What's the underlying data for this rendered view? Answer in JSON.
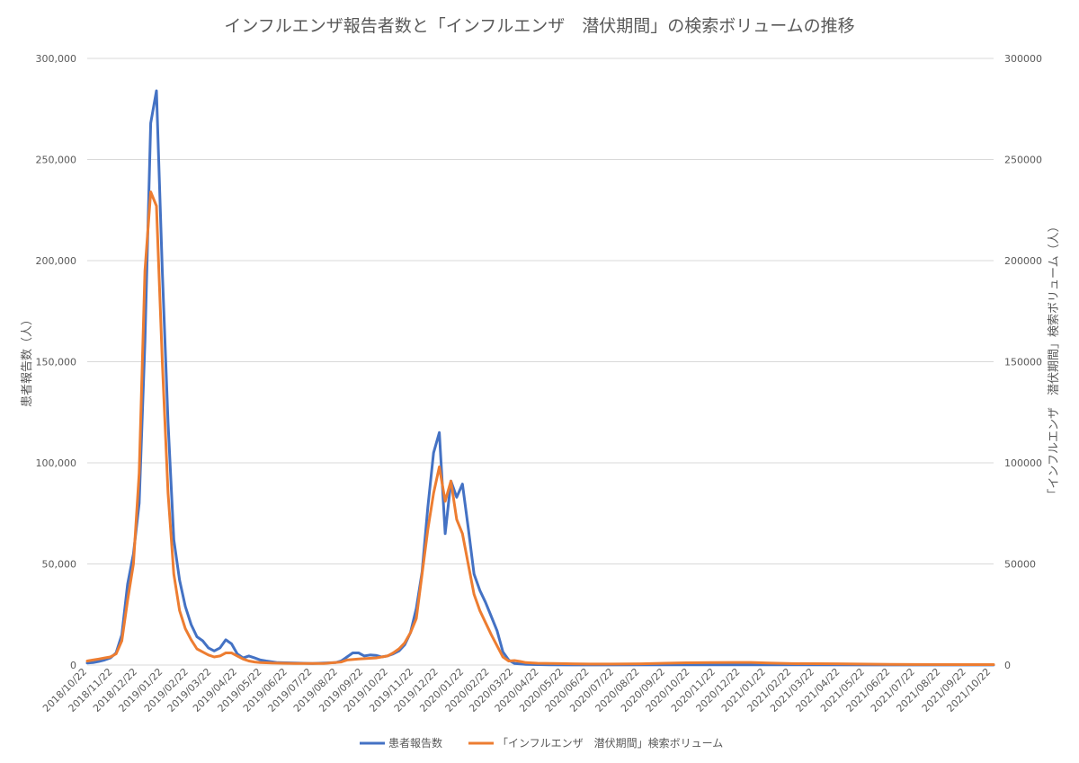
{
  "chart_data": {
    "type": "line",
    "title": "インフルエンザ報告者数と「インフルエンザ　潜伏期間」の検索ボリュームの推移",
    "y_left_label": "患者報告数（人）",
    "y_right_label": "「インフルエンザ　潜伏期間」検索ボリューム（人）",
    "y_left_ticks": [
      "0",
      "50,000",
      "100,000",
      "150,000",
      "200,000",
      "250,000",
      "300,000"
    ],
    "y_right_ticks": [
      "0",
      "50000",
      "100000",
      "150000",
      "200000",
      "250000",
      "300000"
    ],
    "ylim": [
      0,
      300000
    ],
    "grid": true,
    "legend_position": "bottom",
    "x_tick_labels": [
      "2018/10/22",
      "2018/11/22",
      "2018/12/22",
      "2019/01/22",
      "2019/02/22",
      "2019/03/22",
      "2019/04/22",
      "2019/05/22",
      "2019/06/22",
      "2019/07/22",
      "2019/08/22",
      "2019/09/22",
      "2019/10/22",
      "2019/11/22",
      "2019/12/22",
      "2020/01/22",
      "2020/02/22",
      "2020/03/22",
      "2020/04/22",
      "2020/05/22",
      "2020/06/22",
      "2020/07/22",
      "2020/08/22",
      "2020/09/22",
      "2020/10/22",
      "2020/11/22",
      "2020/12/22",
      "2021/01/22",
      "2021/02/22",
      "2021/03/22",
      "2021/04/22",
      "2021/05/22",
      "2021/06/22",
      "2021/07/22",
      "2021/08/22",
      "2021/09/22",
      "2021/10/22"
    ],
    "x_start": "2018-10-22",
    "series": [
      {
        "name": "患者報告数",
        "color": "#4472C4",
        "axis": "left",
        "points": [
          [
            "2018-10-22",
            1000
          ],
          [
            "2018-10-29",
            1200
          ],
          [
            "2018-11-05",
            1800
          ],
          [
            "2018-11-12",
            2500
          ],
          [
            "2018-11-19",
            3500
          ],
          [
            "2018-11-26",
            6000
          ],
          [
            "2018-12-03",
            15000
          ],
          [
            "2018-12-10",
            40000
          ],
          [
            "2018-12-17",
            55000
          ],
          [
            "2018-12-24",
            80000
          ],
          [
            "2018-12-31",
            160000
          ],
          [
            "2019-01-07",
            268000
          ],
          [
            "2019-01-14",
            284000
          ],
          [
            "2019-01-21",
            195000
          ],
          [
            "2019-01-28",
            120000
          ],
          [
            "2019-02-04",
            62000
          ],
          [
            "2019-02-11",
            42000
          ],
          [
            "2019-02-18",
            29000
          ],
          [
            "2019-02-25",
            20000
          ],
          [
            "2019-03-04",
            14000
          ],
          [
            "2019-03-11",
            12000
          ],
          [
            "2019-03-18",
            8500
          ],
          [
            "2019-03-25",
            7000
          ],
          [
            "2019-04-01",
            8500
          ],
          [
            "2019-04-08",
            12500
          ],
          [
            "2019-04-15",
            10500
          ],
          [
            "2019-04-22",
            5500
          ],
          [
            "2019-04-29",
            3500
          ],
          [
            "2019-05-06",
            4500
          ],
          [
            "2019-05-13",
            3500
          ],
          [
            "2019-05-20",
            2500
          ],
          [
            "2019-05-27",
            2000
          ],
          [
            "2019-06-10",
            1200
          ],
          [
            "2019-07-01",
            1000
          ],
          [
            "2019-07-22",
            800
          ],
          [
            "2019-08-05",
            1000
          ],
          [
            "2019-08-19",
            1200
          ],
          [
            "2019-08-26",
            2000
          ],
          [
            "2019-09-02",
            4000
          ],
          [
            "2019-09-09",
            6000
          ],
          [
            "2019-09-16",
            6000
          ],
          [
            "2019-09-23",
            4500
          ],
          [
            "2019-09-30",
            5000
          ],
          [
            "2019-10-07",
            4800
          ],
          [
            "2019-10-14",
            4000
          ],
          [
            "2019-10-21",
            4500
          ],
          [
            "2019-10-28",
            5500
          ],
          [
            "2019-11-04",
            7000
          ],
          [
            "2019-11-11",
            10000
          ],
          [
            "2019-11-18",
            16000
          ],
          [
            "2019-11-25",
            28000
          ],
          [
            "2019-12-02",
            46000
          ],
          [
            "2019-12-09",
            78000
          ],
          [
            "2019-12-16",
            105000
          ],
          [
            "2019-12-23",
            115000
          ],
          [
            "2019-12-30",
            65000
          ],
          [
            "2020-01-06",
            91000
          ],
          [
            "2020-01-13",
            83000
          ],
          [
            "2020-01-20",
            89500
          ],
          [
            "2020-01-27",
            68000
          ],
          [
            "2020-02-03",
            45000
          ],
          [
            "2020-02-10",
            37000
          ],
          [
            "2020-02-17",
            31000
          ],
          [
            "2020-02-24",
            24000
          ],
          [
            "2020-03-02",
            17000
          ],
          [
            "2020-03-09",
            6500
          ],
          [
            "2020-03-16",
            2500
          ],
          [
            "2020-03-23",
            800
          ],
          [
            "2020-04-06",
            300
          ],
          [
            "2020-05-04",
            100
          ],
          [
            "2020-07-06",
            50
          ],
          [
            "2020-10-05",
            80
          ],
          [
            "2020-12-07",
            120
          ],
          [
            "2021-03-01",
            100
          ],
          [
            "2021-06-07",
            50
          ],
          [
            "2021-10-25",
            50
          ]
        ]
      },
      {
        "name": "「インフルエンザ　潜伏期間」検索ボリューム",
        "color": "#ED7D31",
        "axis": "right",
        "points": [
          [
            "2018-10-22",
            2000
          ],
          [
            "2018-10-29",
            2500
          ],
          [
            "2018-11-05",
            3000
          ],
          [
            "2018-11-12",
            3500
          ],
          [
            "2018-11-19",
            4000
          ],
          [
            "2018-11-26",
            5500
          ],
          [
            "2018-12-03",
            12000
          ],
          [
            "2018-12-10",
            32000
          ],
          [
            "2018-12-17",
            50000
          ],
          [
            "2018-12-24",
            95000
          ],
          [
            "2018-12-31",
            195000
          ],
          [
            "2019-01-07",
            234000
          ],
          [
            "2019-01-14",
            227000
          ],
          [
            "2019-01-21",
            150000
          ],
          [
            "2019-01-28",
            85000
          ],
          [
            "2019-02-04",
            45000
          ],
          [
            "2019-02-11",
            27000
          ],
          [
            "2019-02-18",
            18000
          ],
          [
            "2019-02-25",
            12500
          ],
          [
            "2019-03-04",
            8000
          ],
          [
            "2019-03-11",
            6500
          ],
          [
            "2019-03-18",
            5000
          ],
          [
            "2019-03-25",
            4000
          ],
          [
            "2019-04-01",
            4500
          ],
          [
            "2019-04-08",
            6000
          ],
          [
            "2019-04-15",
            6000
          ],
          [
            "2019-04-22",
            4500
          ],
          [
            "2019-04-29",
            3000
          ],
          [
            "2019-05-06",
            2000
          ],
          [
            "2019-05-13",
            1500
          ],
          [
            "2019-05-20",
            1200
          ],
          [
            "2019-06-03",
            1000
          ],
          [
            "2019-07-01",
            800
          ],
          [
            "2019-08-05",
            800
          ],
          [
            "2019-08-26",
            1500
          ],
          [
            "2019-09-02",
            2500
          ],
          [
            "2019-09-16",
            3000
          ],
          [
            "2019-10-07",
            3500
          ],
          [
            "2019-10-21",
            4500
          ],
          [
            "2019-10-28",
            6000
          ],
          [
            "2019-11-04",
            8000
          ],
          [
            "2019-11-11",
            11000
          ],
          [
            "2019-11-18",
            16000
          ],
          [
            "2019-11-25",
            23000
          ],
          [
            "2019-12-02",
            45000
          ],
          [
            "2019-12-09",
            67000
          ],
          [
            "2019-12-16",
            85000
          ],
          [
            "2019-12-23",
            98000
          ],
          [
            "2019-12-30",
            81000
          ],
          [
            "2020-01-06",
            91000
          ],
          [
            "2020-01-13",
            72000
          ],
          [
            "2020-01-20",
            65000
          ],
          [
            "2020-01-27",
            50000
          ],
          [
            "2020-02-03",
            35000
          ],
          [
            "2020-02-10",
            27000
          ],
          [
            "2020-02-17",
            21000
          ],
          [
            "2020-02-24",
            15000
          ],
          [
            "2020-03-02",
            9500
          ],
          [
            "2020-03-09",
            4000
          ],
          [
            "2020-03-16",
            2000
          ],
          [
            "2020-03-23",
            2200
          ],
          [
            "2020-03-30",
            1800
          ],
          [
            "2020-04-06",
            1200
          ],
          [
            "2020-04-20",
            900
          ],
          [
            "2020-05-18",
            700
          ],
          [
            "2020-06-22",
            500
          ],
          [
            "2020-07-20",
            500
          ],
          [
            "2020-08-24",
            600
          ],
          [
            "2020-09-21",
            900
          ],
          [
            "2020-10-19",
            1100
          ],
          [
            "2020-11-16",
            1200
          ],
          [
            "2020-12-14",
            1300
          ],
          [
            "2021-01-04",
            1300
          ],
          [
            "2021-01-25",
            1000
          ],
          [
            "2021-02-22",
            700
          ],
          [
            "2021-04-19",
            600
          ],
          [
            "2021-06-21",
            300
          ],
          [
            "2021-09-20",
            200
          ],
          [
            "2021-10-25",
            200
          ]
        ]
      }
    ]
  }
}
